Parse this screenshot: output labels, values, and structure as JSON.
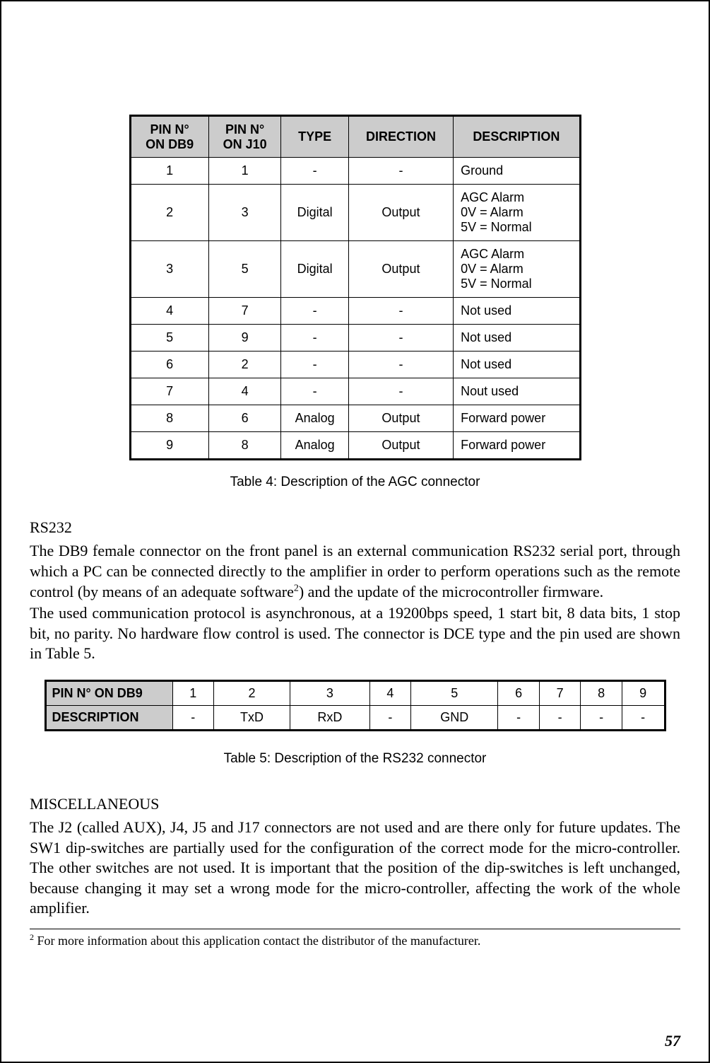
{
  "table4": {
    "columns": [
      "PIN N°\nON DB9",
      "PIN N°\nON J10",
      "TYPE",
      "DIRECTION",
      "DESCRIPTION"
    ],
    "rows": [
      {
        "db9": "1",
        "j10": "1",
        "type": "-",
        "dir": "-",
        "desc": "Ground"
      },
      {
        "db9": "2",
        "j10": "3",
        "type": "Digital",
        "dir": "Output",
        "desc": "AGC Alarm\n0V = Alarm\n5V = Normal"
      },
      {
        "db9": "3",
        "j10": "5",
        "type": "Digital",
        "dir": "Output",
        "desc": "AGC Alarm\n0V = Alarm\n5V = Normal"
      },
      {
        "db9": "4",
        "j10": "7",
        "type": "-",
        "dir": "-",
        "desc": "Not used"
      },
      {
        "db9": "5",
        "j10": "9",
        "type": "-",
        "dir": "-",
        "desc": "Not used"
      },
      {
        "db9": "6",
        "j10": "2",
        "type": "-",
        "dir": "-",
        "desc": "Not used"
      },
      {
        "db9": "7",
        "j10": "4",
        "type": "-",
        "dir": "-",
        "desc": "Nout used"
      },
      {
        "db9": "8",
        "j10": "6",
        "type": "Analog",
        "dir": "Output",
        "desc": "Forward power"
      },
      {
        "db9": "9",
        "j10": "8",
        "type": "Analog",
        "dir": "Output",
        "desc": "Forward power"
      }
    ],
    "caption": "Table 4: Description of the AGC connector"
  },
  "rs232_section_title": "RS232",
  "rs232_para1": "The DB9 female connector on the front panel is an external communication RS232 serial port, through which a PC can be connected directly to the amplifier in order to perform operations such as the remote control (by means of an adequate software",
  "rs232_para1_after": ") and the update of the microcontroller firmware.",
  "rs232_para2": "The used communication protocol is asynchronous, at a 19200bps speed, 1 start bit, 8 data bits, 1 stop bit, no parity. No hardware flow control is used. The connector is DCE type and the pin used are shown in Table 5.",
  "table5": {
    "row1_label": "PIN N° ON DB9",
    "row1_values": [
      "1",
      "2",
      "3",
      "4",
      "5",
      "6",
      "7",
      "8",
      "9"
    ],
    "row2_label": "DESCRIPTION",
    "row2_values": [
      "-",
      "TxD",
      "RxD",
      "-",
      "GND",
      "-",
      "-",
      "-",
      "-"
    ],
    "caption": "Table 5: Description of the RS232 connector"
  },
  "misc_section_title": "MISCELLANEOUS",
  "misc_para": "The J2 (called AUX), J4, J5 and J17 connectors are not used and are there only for future updates. The SW1 dip-switches are partially used for the configuration of the correct mode for the micro-controller. The other switches are not used. It is important that the position of the dip-switches is left unchanged, because changing it may set a wrong mode for the micro-controller, affecting the work of the whole amplifier.",
  "footnote_marker": "2",
  "footnote_text": " For more information about this application contact the distributor of the manufacturer.",
  "page_number": "57",
  "colors": {
    "header_bg": "#cccccc",
    "border": "#000000",
    "background": "#ffffff",
    "text": "#000000"
  },
  "fonts": {
    "body": "Times New Roman",
    "table": "Arial",
    "body_size_pt": 16,
    "table_size_pt": 13
  }
}
